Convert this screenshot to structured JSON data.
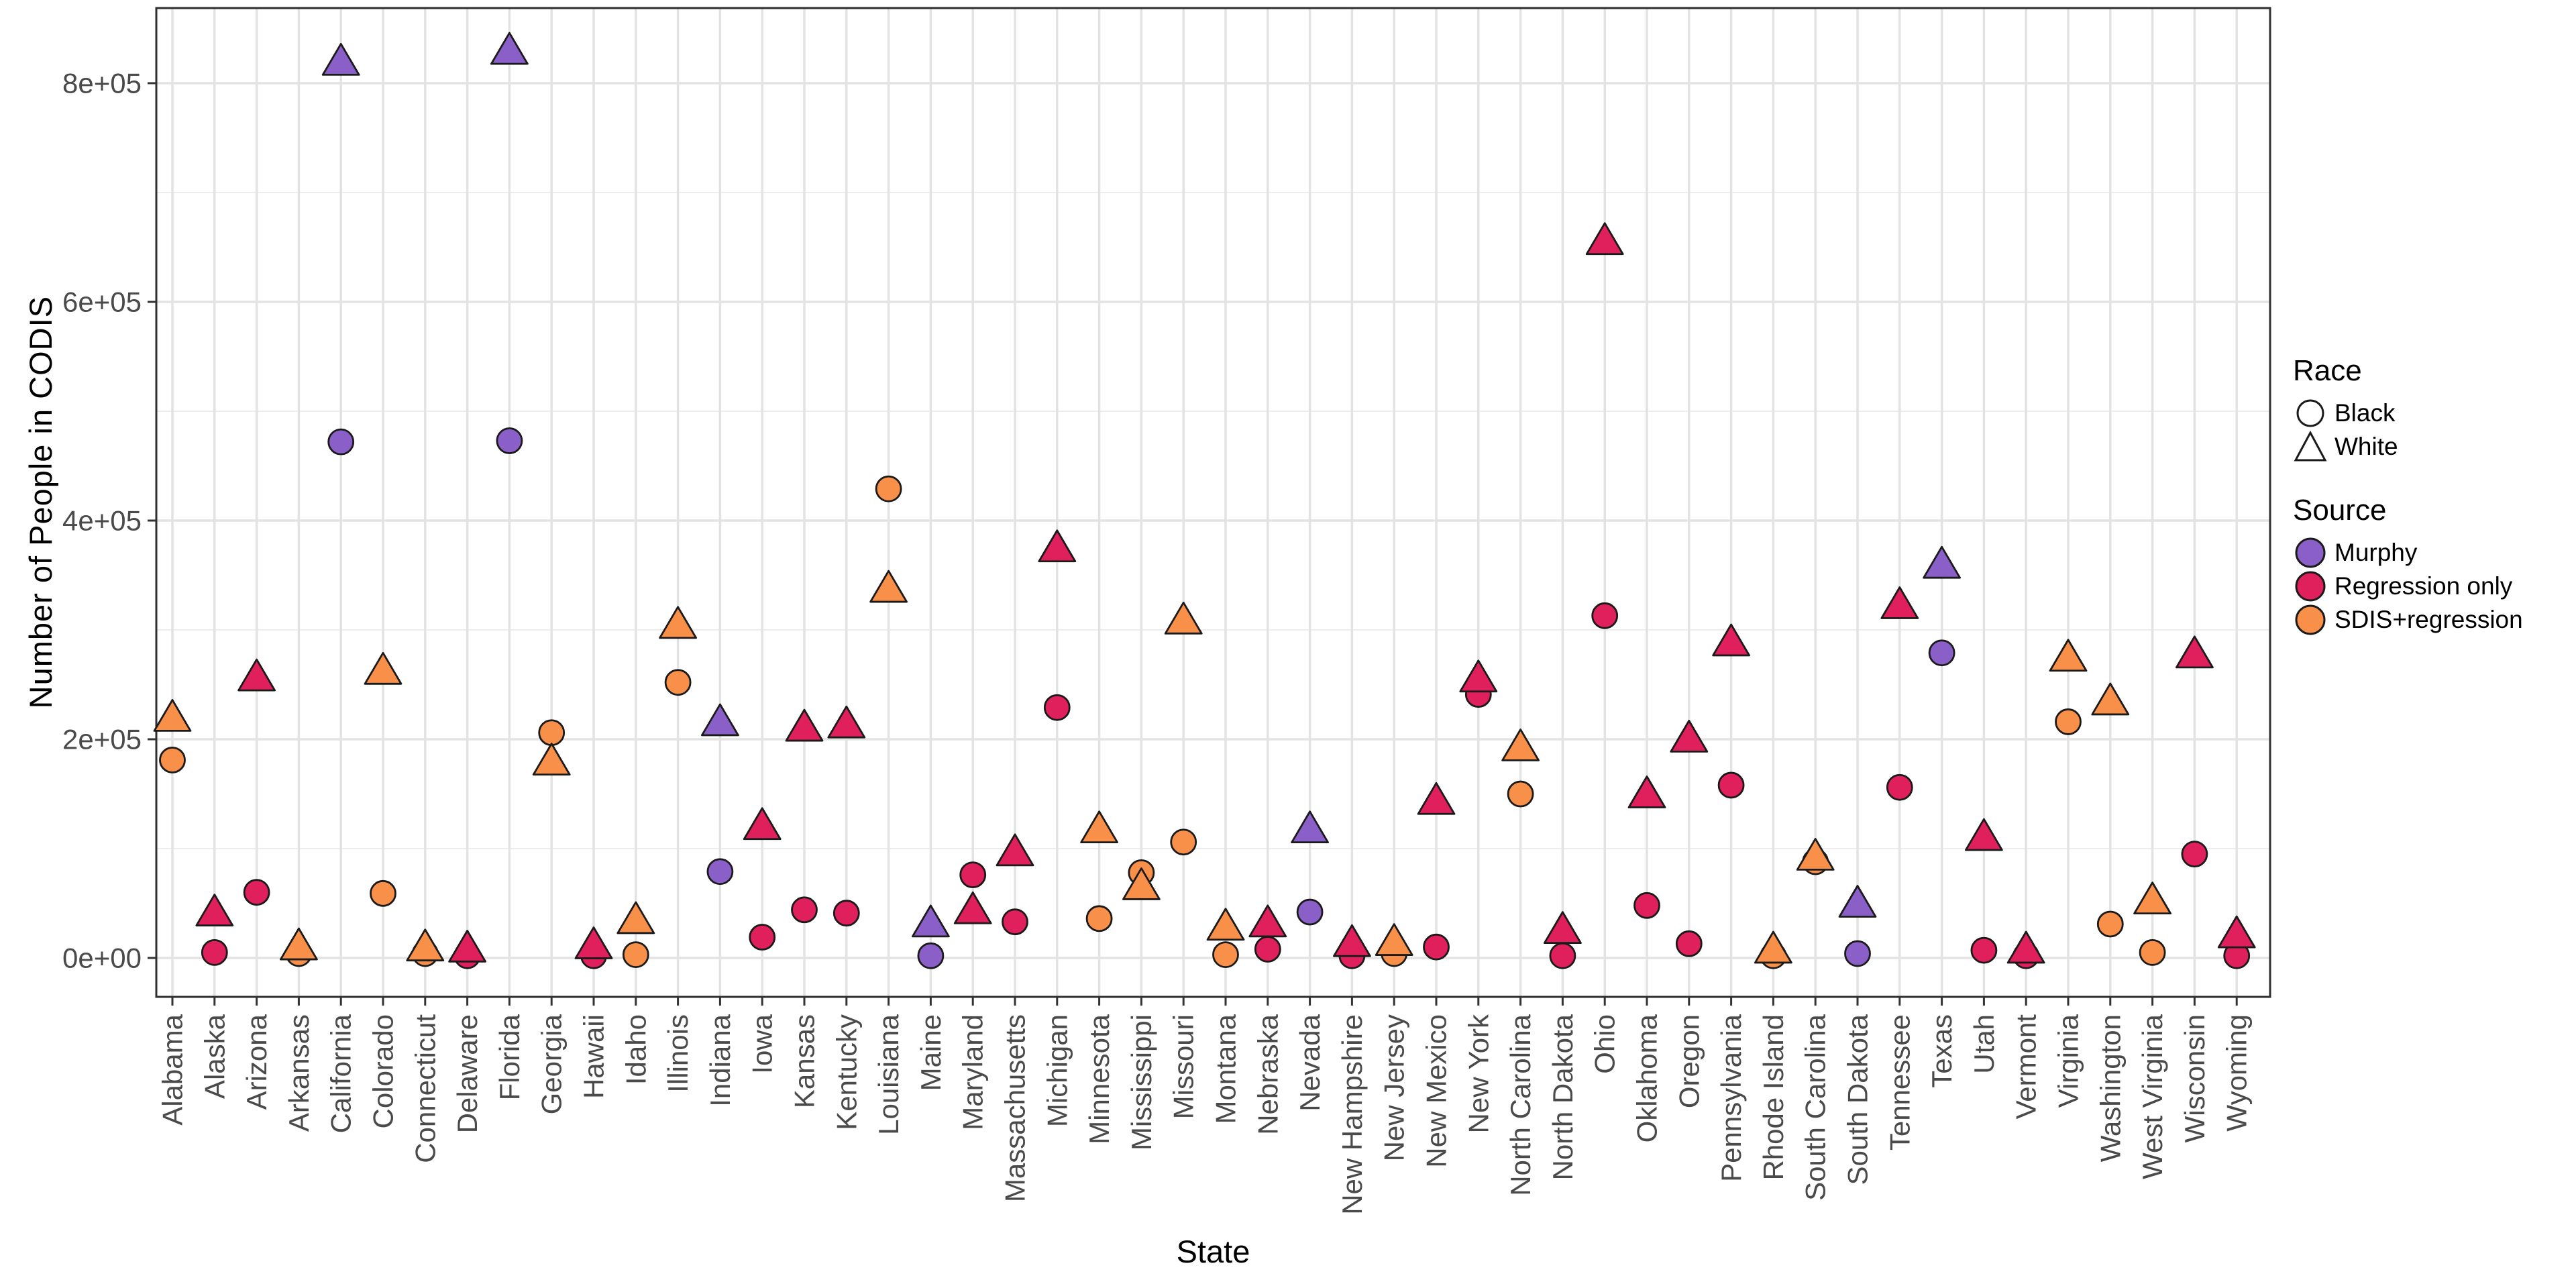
{
  "axes": {
    "x": {
      "label": "State"
    },
    "y": {
      "label": "Number of People in CODIS",
      "ticks": [
        {
          "label": "0e+00",
          "value": 0
        },
        {
          "label": "2e+05",
          "value": 200000
        },
        {
          "label": "4e+05",
          "value": 400000
        },
        {
          "label": "6e+05",
          "value": 600000
        },
        {
          "label": "8e+05",
          "value": 800000
        }
      ],
      "minor_tick_values": [
        100000,
        300000,
        500000,
        700000
      ]
    }
  },
  "legend": {
    "race": {
      "title": "Race",
      "items": [
        {
          "label": "Black",
          "shape": "circle"
        },
        {
          "label": "White",
          "shape": "triangle"
        }
      ]
    },
    "source": {
      "title": "Source",
      "items": [
        {
          "label": "Murphy",
          "color": "#8B5FC8"
        },
        {
          "label": "Regression only",
          "color": "#E0205C"
        },
        {
          "label": "SDIS+regression",
          "color": "#F8904A"
        }
      ]
    }
  },
  "colors": {
    "panel_background": "#FFFFFF",
    "panel_border": "#2F2F2F",
    "grid_major": "#E3E3E3",
    "grid_minor": "#EDEDED",
    "tick_text": "#4A4A4A",
    "symbol_stroke": "#1A1A1A",
    "murphy": "#8B5FC8",
    "regression_only": "#E0205C",
    "sdis_regression": "#F8904A"
  },
  "chart_data": {
    "type": "scatter",
    "title": "",
    "xlabel": "State",
    "ylabel": "Number of People in CODIS",
    "ylim": [
      0,
      850000
    ],
    "grid": "major+minor horizontal, major vertical per state",
    "legend_position": "right",
    "shape_encoding": {
      "Black": "circle",
      "White": "triangle"
    },
    "color_encoding": {
      "Murphy": "#8B5FC8",
      "Regression only": "#E0205C",
      "SDIS+regression": "#F8904A"
    },
    "points": [
      {
        "state": "Alabama",
        "source": "SDIS+regression",
        "black": 181000,
        "white": 220000
      },
      {
        "state": "Alaska",
        "source": "Regression only",
        "black": 5000,
        "white": 42000
      },
      {
        "state": "Arizona",
        "source": "Regression only",
        "black": 60000,
        "white": 257000
      },
      {
        "state": "Arkansas",
        "source": "SDIS+regression",
        "black": 4000,
        "white": 11000
      },
      {
        "state": "California",
        "source": "Murphy",
        "black": 472000,
        "white": 820000
      },
      {
        "state": "Colorado",
        "source": "SDIS+regression",
        "black": 59000,
        "white": 263000
      },
      {
        "state": "Connecticut",
        "source": "SDIS+regression",
        "black": 4000,
        "white": 10000
      },
      {
        "state": "Delaware",
        "source": "Regression only",
        "black": 2000,
        "white": 9000
      },
      {
        "state": "Florida",
        "source": "Murphy",
        "black": 473000,
        "white": 830000
      },
      {
        "state": "Georgia",
        "source": "SDIS+regression",
        "black": 206000,
        "white": 180000
      },
      {
        "state": "Hawaii",
        "source": "Regression only",
        "black": 2000,
        "white": 12000
      },
      {
        "state": "Idaho",
        "source": "SDIS+regression",
        "black": 3000,
        "white": 35000
      },
      {
        "state": "Illinois",
        "source": "SDIS+regression",
        "black": 252000,
        "white": 305000
      },
      {
        "state": "Indiana",
        "source": "Murphy",
        "black": 79000,
        "white": 216000
      },
      {
        "state": "Iowa",
        "source": "Regression only",
        "black": 19000,
        "white": 121000
      },
      {
        "state": "Kansas",
        "source": "Regression only",
        "black": 44000,
        "white": 211000
      },
      {
        "state": "Kentucky",
        "source": "Regression only",
        "black": 41000,
        "white": 214000
      },
      {
        "state": "Louisiana",
        "source": "SDIS+regression",
        "black": 429000,
        "white": 338000
      },
      {
        "state": "Maine",
        "source": "Murphy",
        "black": 2000,
        "white": 32000
      },
      {
        "state": "Maryland",
        "source": "Regression only",
        "black": 76000,
        "white": 44000
      },
      {
        "state": "Massachusetts",
        "source": "Regression only",
        "black": 33000,
        "white": 97000
      },
      {
        "state": "Michigan",
        "source": "Regression only",
        "black": 229000,
        "white": 375000
      },
      {
        "state": "Minnesota",
        "source": "SDIS+regression",
        "black": 36000,
        "white": 118000
      },
      {
        "state": "Mississippi",
        "source": "SDIS+regression",
        "black": 78000,
        "white": 66000
      },
      {
        "state": "Missouri",
        "source": "SDIS+regression",
        "black": 106000,
        "white": 309000
      },
      {
        "state": "Montana",
        "source": "SDIS+regression",
        "black": 3000,
        "white": 29000
      },
      {
        "state": "Nebraska",
        "source": "Regression only",
        "black": 8000,
        "white": 32000
      },
      {
        "state": "Nevada",
        "source": "Murphy",
        "black": 42000,
        "white": 118000
      },
      {
        "state": "New Hampshire",
        "source": "Regression only",
        "black": 2000,
        "white": 14000
      },
      {
        "state": "New Jersey",
        "source": "SDIS+regression",
        "black": 4000,
        "white": 15000
      },
      {
        "state": "New Mexico",
        "source": "Regression only",
        "black": 10000,
        "white": 144000
      },
      {
        "state": "New York",
        "source": "Regression only",
        "black": 241000,
        "white": 256000
      },
      {
        "state": "North Carolina",
        "source": "SDIS+regression",
        "black": 150000,
        "white": 193000
      },
      {
        "state": "North Dakota",
        "source": "Regression only",
        "black": 2000,
        "white": 26000
      },
      {
        "state": "Ohio",
        "source": "Regression only",
        "black": 313000,
        "white": 656000
      },
      {
        "state": "Oklahoma",
        "source": "Regression only",
        "black": 48000,
        "white": 150000
      },
      {
        "state": "Oregon",
        "source": "Regression only",
        "black": 13000,
        "white": 201000
      },
      {
        "state": "Pennsylvania",
        "source": "Regression only",
        "black": 158000,
        "white": 289000
      },
      {
        "state": "Rhode Island",
        "source": "SDIS+regression",
        "black": 2000,
        "white": 8000
      },
      {
        "state": "South Carolina",
        "source": "SDIS+regression",
        "black": 88000,
        "white": 93000
      },
      {
        "state": "South Dakota",
        "source": "Murphy",
        "black": 4000,
        "white": 50000
      },
      {
        "state": "Tennessee",
        "source": "Regression only",
        "black": 156000,
        "white": 323000
      },
      {
        "state": "Texas",
        "source": "Murphy",
        "black": 279000,
        "white": 360000
      },
      {
        "state": "Utah",
        "source": "Regression only",
        "black": 7000,
        "white": 111000
      },
      {
        "state": "Vermont",
        "source": "Regression only",
        "black": 2000,
        "white": 8000
      },
      {
        "state": "Virginia",
        "source": "SDIS+regression",
        "black": 216000,
        "white": 275000
      },
      {
        "state": "Washington",
        "source": "SDIS+regression",
        "black": 31000,
        "white": 235000
      },
      {
        "state": "West Virginia",
        "source": "SDIS+regression",
        "black": 5000,
        "white": 53000
      },
      {
        "state": "Wisconsin",
        "source": "Regression only",
        "black": 95000,
        "white": 278000
      },
      {
        "state": "Wyoming",
        "source": "Regression only",
        "black": 2000,
        "white": 22000
      }
    ]
  }
}
